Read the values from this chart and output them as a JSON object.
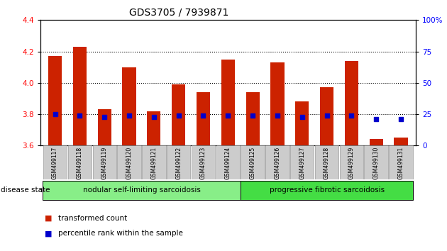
{
  "title": "GDS3705 / 7939871",
  "samples": [
    "GSM499117",
    "GSM499118",
    "GSM499119",
    "GSM499120",
    "GSM499121",
    "GSM499122",
    "GSM499123",
    "GSM499124",
    "GSM499125",
    "GSM499126",
    "GSM499127",
    "GSM499128",
    "GSM499129",
    "GSM499130",
    "GSM499131"
  ],
  "transformed_count": [
    4.17,
    4.23,
    3.83,
    4.1,
    3.82,
    3.99,
    3.94,
    4.15,
    3.94,
    4.13,
    3.88,
    3.97,
    4.14,
    3.64,
    3.65
  ],
  "percentile_rank": [
    25,
    24,
    23,
    24,
    23,
    24,
    24,
    24,
    24,
    24,
    23,
    24,
    24,
    21,
    21
  ],
  "ylim_left": [
    3.6,
    4.4
  ],
  "ylim_right": [
    0,
    100
  ],
  "yticks_left": [
    3.6,
    3.8,
    4.0,
    4.2,
    4.4
  ],
  "yticks_right": [
    0,
    25,
    50,
    75,
    100
  ],
  "bar_color": "#cc2200",
  "percentile_color": "#0000cc",
  "bar_bottom": 3.6,
  "grid_lines": [
    3.8,
    4.0,
    4.2
  ],
  "disease_state_groups": [
    {
      "label": "nodular self-limiting sarcoidosis",
      "start": 0,
      "end": 8,
      "color": "#88ee88"
    },
    {
      "label": "progressive fibrotic sarcoidosis",
      "start": 8,
      "end": 15,
      "color": "#44dd44"
    }
  ],
  "legend_items": [
    {
      "label": "transformed count",
      "color": "#cc2200"
    },
    {
      "label": "percentile rank within the sample",
      "color": "#0000cc"
    }
  ],
  "disease_state_label": "disease state",
  "tick_label_bg": "#cccccc",
  "bar_width": 0.55
}
